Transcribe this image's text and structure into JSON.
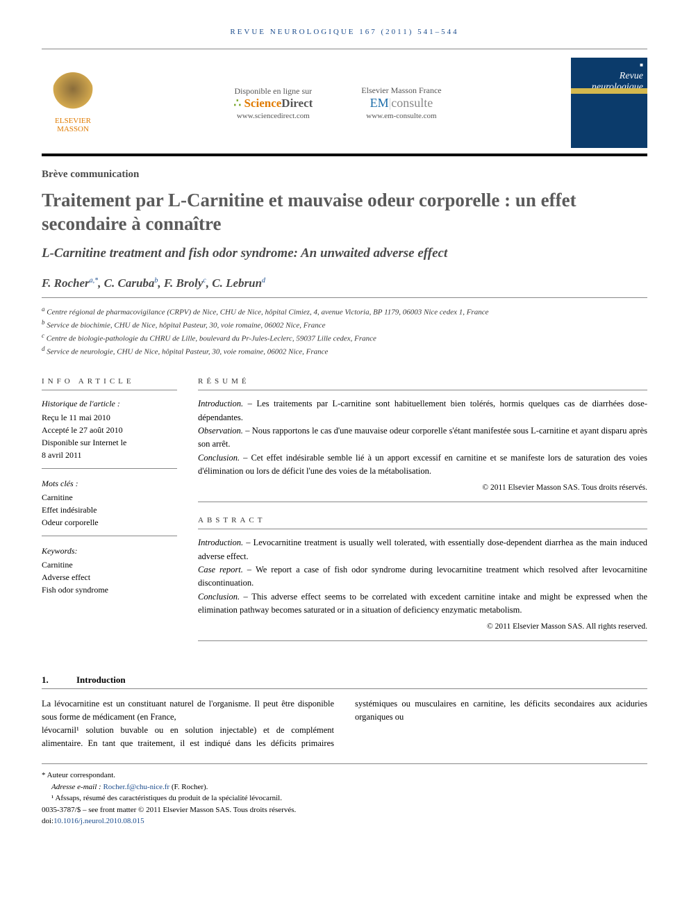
{
  "journal_ref": "REVUE NEUROLOGIQUE 167 (2011) 541–544",
  "publisher_logo": {
    "line1": "ELSEVIER",
    "line2": "MASSON"
  },
  "sciencedirect": {
    "tagline": "Disponible en ligne sur",
    "brand_prefix": "Science",
    "brand_suffix": "Direct",
    "url": "www.sciencedirect.com"
  },
  "emconsulte": {
    "tagline": "Elsevier Masson France",
    "brand_prefix": "EM",
    "brand_suffix": "consulte",
    "url": "www.em-consulte.com"
  },
  "journal_cover_title": "Revue neurologique",
  "article_type": "Brève communication",
  "title_fr": "Traitement par L-Carnitine et mauvaise odeur corporelle : un effet secondaire à connaître",
  "title_en": "L-Carnitine treatment and fish odor syndrome: An unwaited adverse effect",
  "authors": [
    {
      "name": "F. Rocher",
      "aff": "a,*"
    },
    {
      "name": "C. Caruba",
      "aff": "b"
    },
    {
      "name": "F. Broly",
      "aff": "c"
    },
    {
      "name": "C. Lebrun",
      "aff": "d"
    }
  ],
  "affiliations": [
    {
      "sup": "a",
      "text": "Centre régional de pharmacovigilance (CRPV) de Nice, CHU de Nice, hôpital Cimiez, 4, avenue Victoria, BP 1179, 06003 Nice cedex 1, France"
    },
    {
      "sup": "b",
      "text": "Service de biochimie, CHU de Nice, hôpital Pasteur, 30, voie romaine, 06002 Nice, France"
    },
    {
      "sup": "c",
      "text": "Centre de biologie-pathologie du CHRU de Lille, boulevard du Pr-Jules-Leclerc, 59037 Lille cedex, France"
    },
    {
      "sup": "d",
      "text": "Service de neurologie, CHU de Nice, hôpital Pasteur, 30, voie romaine, 06002 Nice, France"
    }
  ],
  "info_label": "INFO ARTICLE",
  "history": {
    "label": "Historique de l'article :",
    "received": "Reçu le 11 mai 2010",
    "accepted": "Accepté le 27 août 2010",
    "online_label": "Disponible sur Internet le",
    "online_date": "8 avril 2011"
  },
  "mots_cles": {
    "label": "Mots clés :",
    "items": [
      "Carnitine",
      "Effet indésirable",
      "Odeur corporelle"
    ]
  },
  "keywords": {
    "label": "Keywords:",
    "items": [
      "Carnitine",
      "Adverse effect",
      "Fish odor syndrome"
    ]
  },
  "resume": {
    "label": "RÉSUMÉ",
    "intro_label": "Introduction. – ",
    "intro": "Les traitements par L-carnitine sont habituellement bien tolérés, hormis quelques cas de diarrhées dose-dépendantes.",
    "obs_label": "Observation. – ",
    "obs": "Nous rapportons le cas d'une mauvaise odeur corporelle s'étant manifestée sous L-carnitine et ayant disparu après son arrêt.",
    "concl_label": "Conclusion. – ",
    "concl": "Cet effet indésirable semble lié à un apport excessif en carnitine et se manifeste lors de saturation des voies d'élimination ou lors de déficit l'une des voies de la métabolisation.",
    "copyright": "© 2011 Elsevier Masson SAS. Tous droits réservés."
  },
  "abstract": {
    "label": "ABSTRACT",
    "intro_label": "Introduction. – ",
    "intro": "Levocarnitine treatment is usually well tolerated, with essentially dose-dependent diarrhea as the main induced adverse effect.",
    "case_label": "Case report. – ",
    "case": "We report a case of fish odor syndrome during levocarnitine treatment which resolved after levocarnitine discontinuation.",
    "concl_label": "Conclusion. – ",
    "concl": "This adverse effect seems to be correlated with excedent carnitine intake and might be expressed when the elimination pathway becomes saturated or in a situation of deficiency enzymatic metabolism.",
    "copyright": "© 2011 Elsevier Masson SAS. All rights reserved."
  },
  "body": {
    "heading_num": "1.",
    "heading_text": "Introduction",
    "p1": "La lévocarnitine est un constituant naturel de l'organisme. Il peut être disponible sous forme de médicament (en France,",
    "p2": "lévocarnil¹ solution buvable ou en solution injectable) et de complément alimentaire. En tant que traitement, il est indiqué dans les déficits primaires systémiques ou musculaires en carnitine, les déficits secondaires aux aciduries organiques ou"
  },
  "footnotes": {
    "corr_label": "* Auteur correspondant.",
    "email_label": "Adresse e-mail :",
    "email": "Rocher.f@chu-nice.fr",
    "email_who": "(F. Rocher).",
    "fn1": "¹ Afssaps, résumé des caractéristiques du produit de la spécialité lévocarnil.",
    "issn": "0035-3787/$ – see front matter © 2011 Elsevier Masson SAS. Tous droits réservés.",
    "doi_label": "doi:",
    "doi": "10.1016/j.neurol.2010.08.015"
  },
  "colors": {
    "link_blue": "#1a4b8c",
    "orange": "#e07b00",
    "green": "#7aa82d",
    "cover_blue": "#0b3b6b",
    "gold": "#d4b84e",
    "heading_gray": "#5a5a5a"
  }
}
